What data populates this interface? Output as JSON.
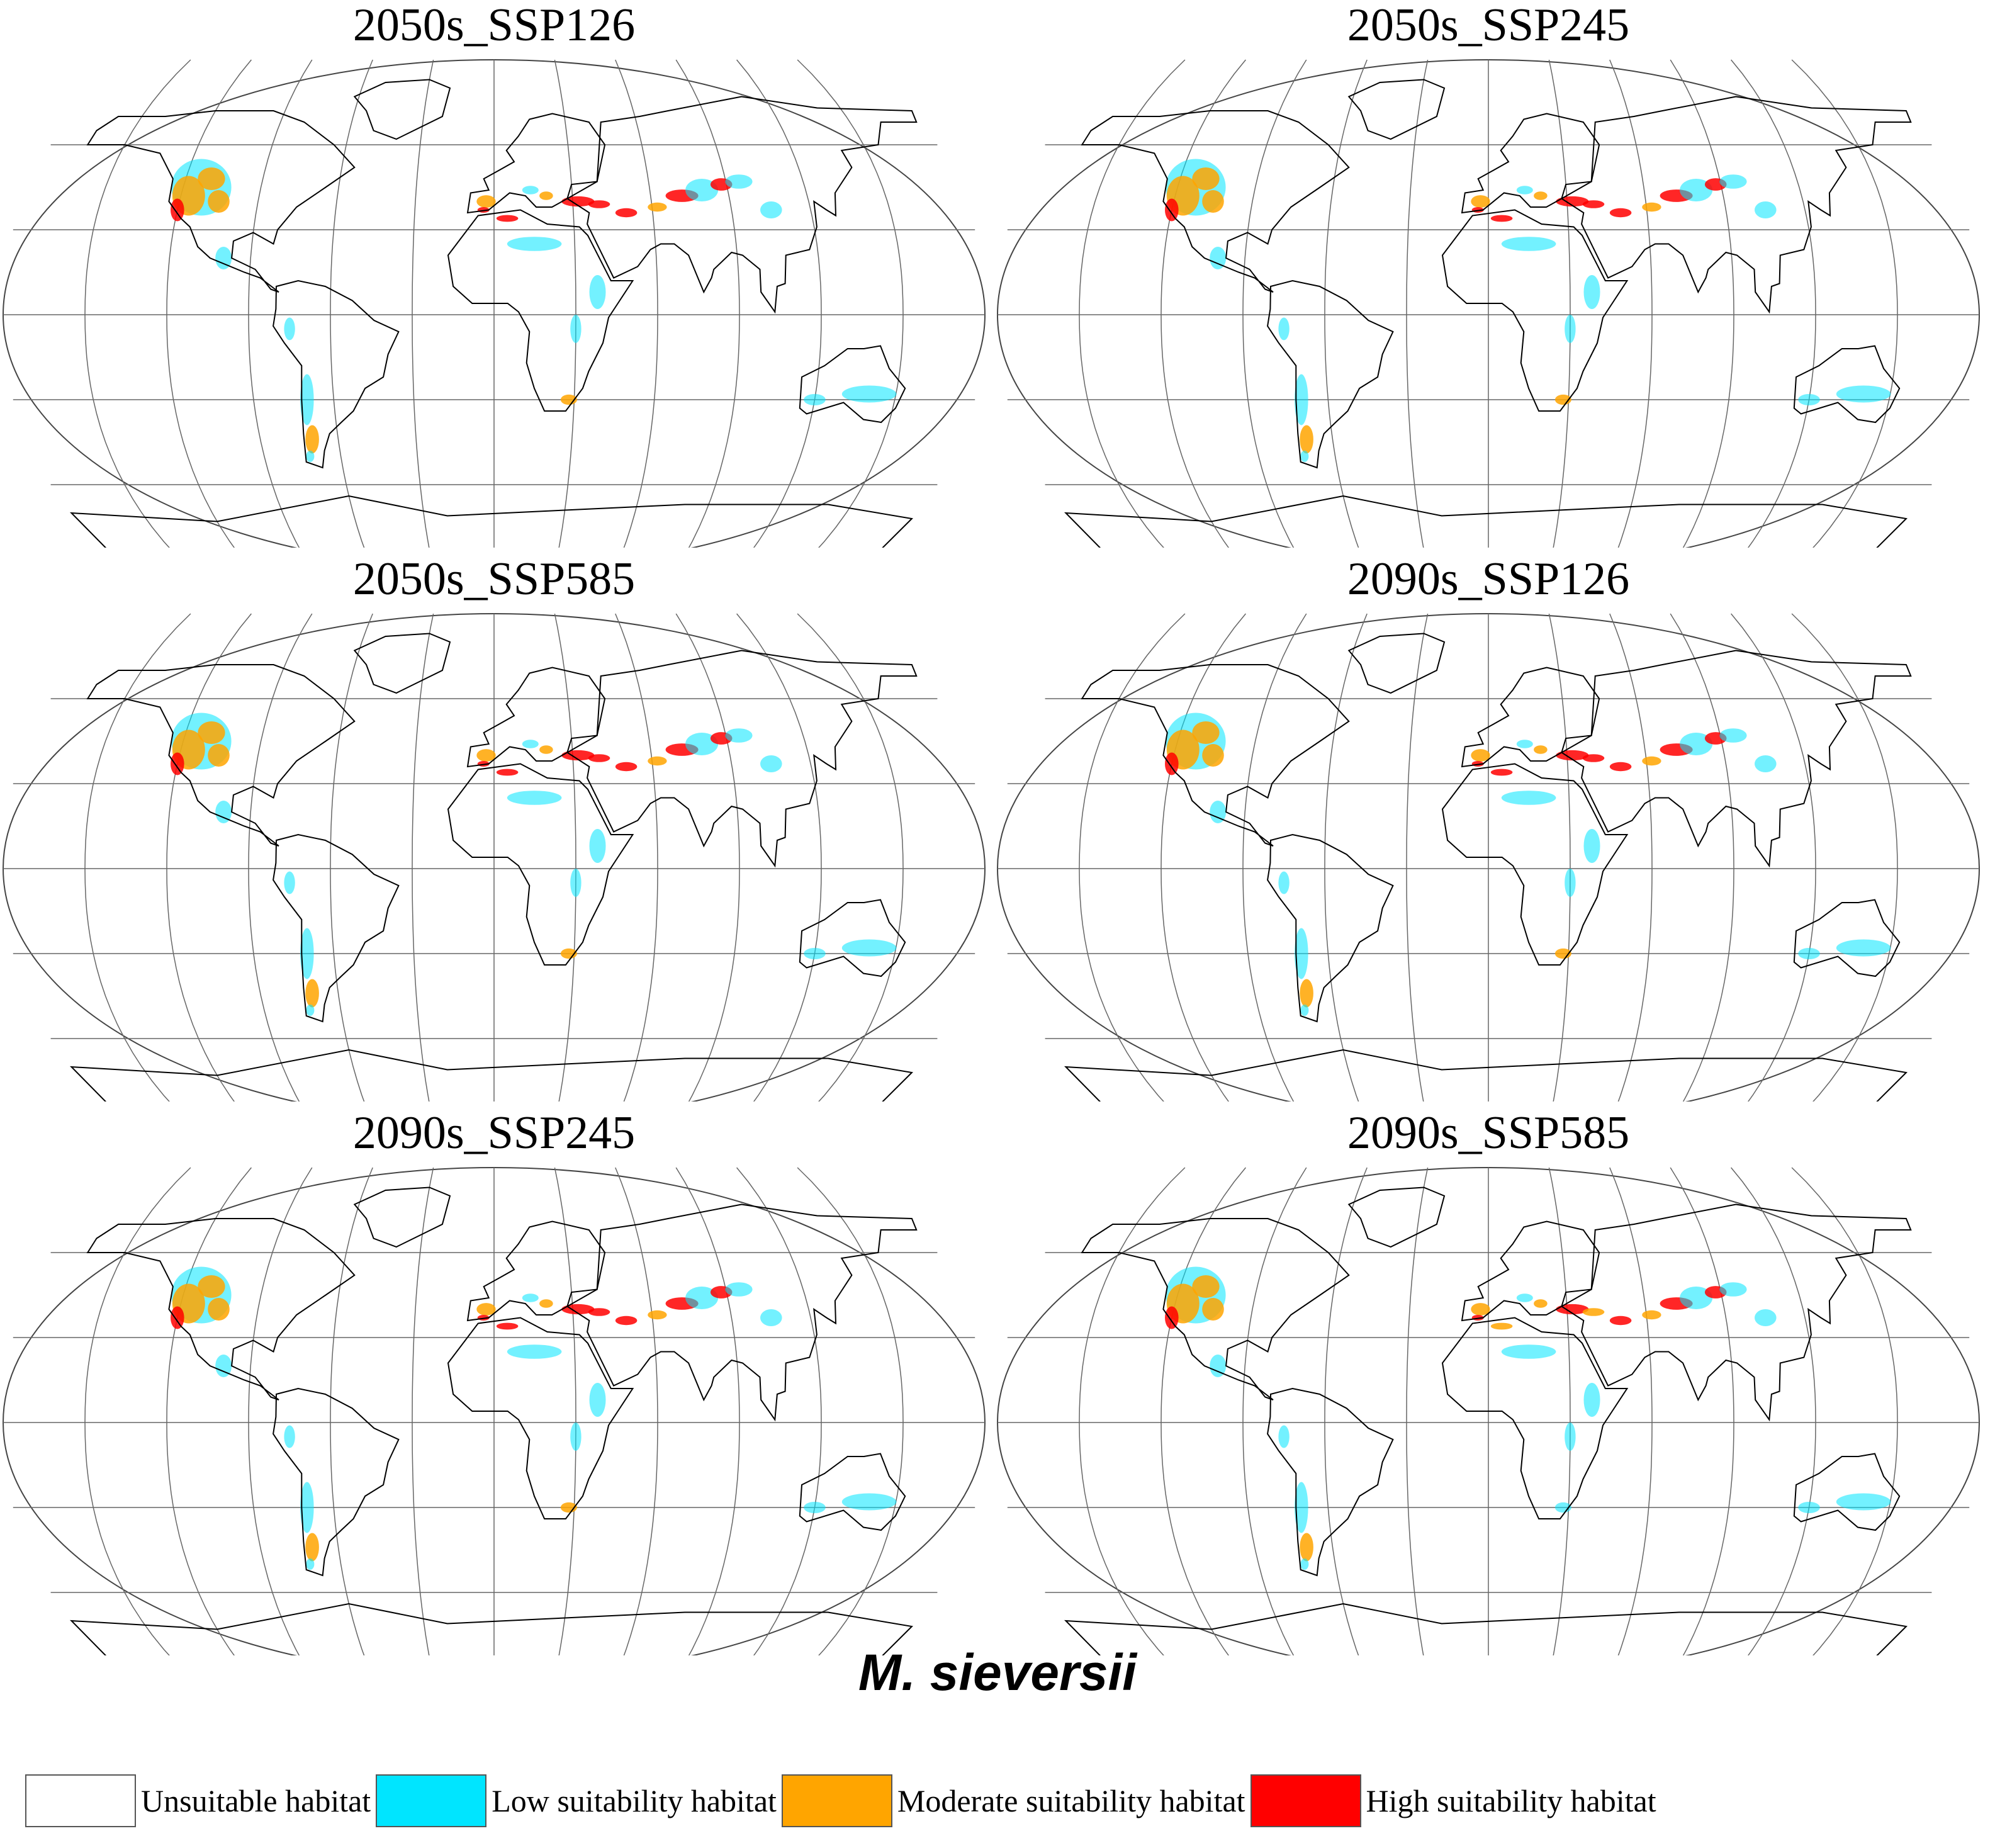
{
  "panels": [
    {
      "title": "2050s_SSP126"
    },
    {
      "title": "2050s_SSP245"
    },
    {
      "title": "2050s_SSP585"
    },
    {
      "title": "2090s_SSP126"
    },
    {
      "title": "2090s_SSP245"
    },
    {
      "title": "2090s_SSP585"
    }
  ],
  "species": "M. sieversii",
  "legend": [
    {
      "label": "Unsuitable habitat",
      "color": "#ffffff"
    },
    {
      "label": "Low suitability habitat",
      "color": "#00e5ff"
    },
    {
      "label": "Moderate suitability habitat",
      "color": "#ffa500"
    },
    {
      "label": "High suitability habitat",
      "color": "#ff0000"
    }
  ],
  "map": {
    "projection": "Robinson",
    "graticule_lon_step": 30,
    "graticule_lat_step": 30
  }
}
